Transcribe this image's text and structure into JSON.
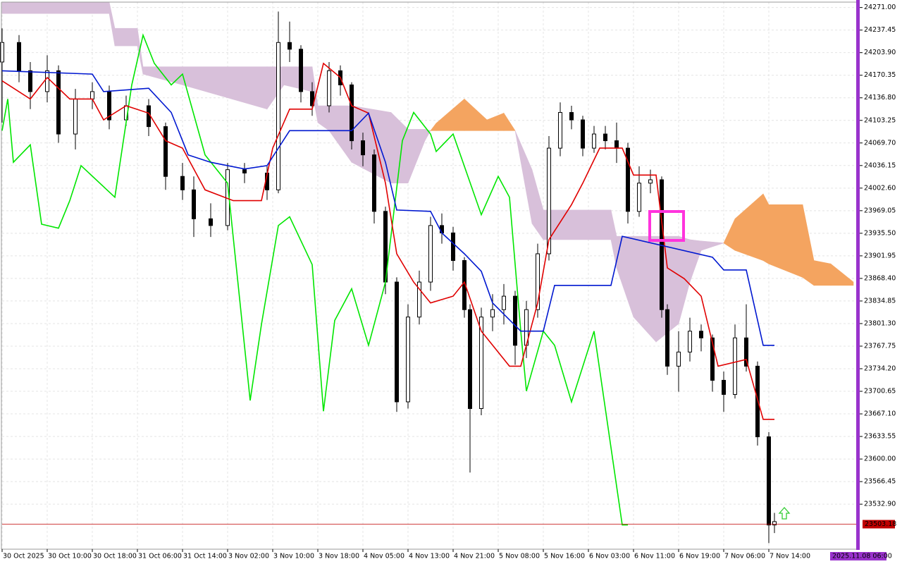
{
  "chart_data": {
    "type": "candlestick",
    "xlim": [
      0,
      152
    ],
    "ylim": [
      23466,
      24279
    ],
    "grid": true,
    "xticks": [
      {
        "value": 0,
        "label": "30 Oct 2025"
      },
      {
        "value": 8,
        "label": "30 Oct 10:00"
      },
      {
        "value": 16,
        "label": "30 Oct 18:00"
      },
      {
        "value": 24,
        "label": "31 Oct 06:00"
      },
      {
        "value": 32,
        "label": "31 Oct 14:00"
      },
      {
        "value": 40,
        "label": "3 Nov 02:00"
      },
      {
        "value": 48,
        "label": "3 Nov 10:00"
      },
      {
        "value": 56,
        "label": "3 Nov 18:00"
      },
      {
        "value": 64,
        "label": "4 Nov 05:00"
      },
      {
        "value": 72,
        "label": "4 Nov 13:00"
      },
      {
        "value": 80,
        "label": "4 Nov 21:00"
      },
      {
        "value": 88,
        "label": "5 Nov 08:00"
      },
      {
        "value": 96,
        "label": "5 Nov 16:00"
      },
      {
        "value": 104,
        "label": "6 Nov 03:00"
      },
      {
        "value": 112,
        "label": "6 Nov 11:00"
      },
      {
        "value": 120,
        "label": "6 Nov 19:00"
      },
      {
        "value": 128,
        "label": "7 Nov 06:00"
      },
      {
        "value": 136,
        "label": "7 Nov 14:00"
      }
    ],
    "yticks": [
      {
        "value": 24271,
        "label": "24271.00"
      },
      {
        "value": 24237.45,
        "label": "24237.45"
      },
      {
        "value": 24203.9,
        "label": "24203.90"
      },
      {
        "value": 24170.35,
        "label": "24170.35"
      },
      {
        "value": 24136.8,
        "label": "24136.80"
      },
      {
        "value": 24103.25,
        "label": "24103.25"
      },
      {
        "value": 24069.7,
        "label": "24069.70"
      },
      {
        "value": 24036.15,
        "label": "24036.15"
      },
      {
        "value": 24002.6,
        "label": "24002.60"
      },
      {
        "value": 23969.05,
        "label": "23969.05"
      },
      {
        "value": 23935.5,
        "label": "23935.50"
      },
      {
        "value": 23901.95,
        "label": "23901.95"
      },
      {
        "value": 23868.4,
        "label": "23868.40"
      },
      {
        "value": 23834.85,
        "label": "23834.85"
      },
      {
        "value": 23801.3,
        "label": "23801.30"
      },
      {
        "value": 23767.75,
        "label": "23767.75"
      },
      {
        "value": 23734.2,
        "label": "23734.20"
      },
      {
        "value": 23700.65,
        "label": "23700.65"
      },
      {
        "value": 23667.1,
        "label": "23667.10"
      },
      {
        "value": 23633.55,
        "label": "23633.55"
      },
      {
        "value": 23600,
        "label": "23600.00"
      },
      {
        "value": 23566.45,
        "label": "23566.45"
      },
      {
        "value": 23532.9,
        "label": "23532.90"
      }
    ],
    "candles": {
      "x": [
        0,
        3,
        5,
        8,
        10,
        13,
        16,
        19,
        22,
        26,
        29,
        32,
        34,
        37,
        40,
        43,
        47,
        49,
        51,
        53,
        55,
        58,
        60,
        62,
        64,
        66,
        68,
        70,
        72,
        74,
        76,
        78,
        80,
        82,
        83,
        85,
        87,
        89,
        91,
        93,
        95,
        97,
        99,
        101,
        103,
        105,
        107,
        109,
        111,
        113,
        115,
        117,
        118,
        120,
        122,
        124,
        126,
        128,
        130,
        132,
        134,
        136,
        137
      ],
      "open": [
        24190,
        24219,
        24177,
        24146,
        24177,
        24083,
        24135,
        24146,
        24104,
        24125,
        24094,
        24020,
        24000,
        23957,
        23947,
        24030,
        24025,
        24000,
        24219,
        24209,
        24146,
        24125,
        24177,
        24156,
        24073,
        24052,
        23968,
        23863,
        23685,
        23811,
        23863,
        23947,
        23936,
        23895,
        23822,
        23675,
        23811,
        23822,
        23842,
        23769,
        23822,
        23905,
        24062,
        24115,
        24104,
        24062,
        24083,
        24073,
        24062,
        23968,
        24010,
        24015,
        23822,
        23738,
        23759,
        23790,
        23780,
        23717,
        23696,
        23780,
        23738,
        23633,
        23502
      ],
      "high": [
        24240,
        24230,
        24190,
        24200,
        24185,
        24150,
        24160,
        24155,
        24140,
        24135,
        24100,
        24040,
        24020,
        23980,
        24040,
        24040,
        24035,
        24265,
        24250,
        24215,
        24160,
        24190,
        24185,
        24160,
        24085,
        24060,
        23975,
        23870,
        23830,
        23880,
        23960,
        23965,
        23945,
        23900,
        23830,
        23825,
        23845,
        23860,
        23850,
        23835,
        23920,
        24080,
        24130,
        24125,
        24110,
        24095,
        24095,
        24100,
        24070,
        24035,
        24030,
        24020,
        23830,
        23790,
        23810,
        23800,
        23785,
        23730,
        23800,
        23830,
        23745,
        23640,
        23520
      ],
      "low": [
        24100,
        24160,
        24120,
        24130,
        24070,
        24060,
        24120,
        24090,
        24095,
        24080,
        24000,
        23985,
        23930,
        23930,
        23940,
        24010,
        23985,
        23995,
        24190,
        24130,
        24110,
        24115,
        24140,
        24060,
        24035,
        23950,
        23845,
        23670,
        23675,
        23800,
        23850,
        23920,
        23880,
        23810,
        23580,
        23665,
        23790,
        23800,
        23740,
        23750,
        23810,
        23895,
        24050,
        24090,
        24050,
        24055,
        24060,
        24040,
        23950,
        23960,
        23995,
        23810,
        23725,
        23700,
        23745,
        23760,
        23700,
        23670,
        23690,
        23730,
        23620,
        23475,
        23490
      ],
      "close": [
        24219,
        24177,
        24146,
        24177,
        24083,
        24135,
        24146,
        24104,
        24125,
        24094,
        24020,
        24000,
        23957,
        23947,
        24030,
        24025,
        24000,
        24219,
        24209,
        24146,
        24125,
        24177,
        24156,
        24073,
        24052,
        23968,
        23863,
        23685,
        23811,
        23863,
        23947,
        23936,
        23895,
        23822,
        23675,
        23811,
        23822,
        23842,
        23769,
        23822,
        23905,
        24062,
        24115,
        24104,
        24062,
        24083,
        24073,
        24062,
        23968,
        24010,
        24015,
        23822,
        23738,
        23759,
        23790,
        23780,
        23717,
        23696,
        23780,
        23738,
        23633,
        23502,
        23507
      ]
    },
    "cloud": {
      "bull_color": "#f4a460",
      "bear_color": "#d8c0da",
      "x": [
        0,
        19,
        20,
        24,
        25,
        32,
        47,
        50,
        55,
        56,
        58,
        62,
        69,
        72,
        75,
        76,
        77,
        82,
        86,
        89,
        91,
        94,
        96,
        108,
        109,
        112,
        116,
        120,
        122,
        124,
        128,
        130,
        135,
        136,
        142,
        144,
        147,
        151
      ],
      "span_a": [
        24262,
        24262,
        24214,
        24214,
        24172,
        24156,
        24120,
        24156,
        24146,
        24100,
        24088,
        24041,
        24010,
        24010,
        24073,
        24088,
        24099,
        24135,
        24104,
        24114,
        24088,
        23950,
        23926,
        23926,
        23884,
        23811,
        23774,
        23801,
        23863,
        23910,
        23921,
        23957,
        23994,
        23978,
        23978,
        23895,
        23890,
        23863
      ],
      "span_b": [
        24279,
        24279,
        24240,
        24240,
        24183,
        24183,
        24183,
        24183,
        24183,
        24125,
        24125,
        24125,
        24115,
        24090,
        24090,
        24088,
        24088,
        24088,
        24088,
        24088,
        24088,
        24030,
        23970,
        23970,
        23931,
        23931,
        23931,
        23931,
        23926,
        23924,
        23921,
        23910,
        23895,
        23890,
        23870,
        23858,
        23858,
        23858
      ]
    },
    "series": [
      {
        "color": "#00e600",
        "x": [
          0,
          1,
          2,
          5,
          7,
          10,
          12,
          14,
          20,
          23,
          25,
          27,
          30,
          32,
          36,
          40,
          44,
          46,
          49,
          51,
          55,
          57,
          59,
          62,
          65,
          68,
          71,
          73,
          76,
          77,
          80,
          85,
          88,
          90,
          92,
          93,
          96,
          98,
          101,
          105,
          110,
          111
        ],
        "values": [
          24088,
          24135,
          24041,
          24067,
          23949,
          23943,
          23984,
          24036,
          23989,
          24156,
          24230,
          24188,
          24156,
          24172,
          24052,
          24010,
          23687,
          23800,
          23947,
          23960,
          23889,
          23671,
          23806,
          23853,
          23769,
          23863,
          24073,
          24115,
          24083,
          24057,
          24083,
          23963,
          24020,
          23989,
          23790,
          23701,
          23790,
          23769,
          23685,
          23790,
          23502,
          23502
        ]
      },
      {
        "color": "#e00000",
        "x": [
          0,
          5,
          8,
          12,
          16,
          18,
          22,
          26,
          29,
          32,
          36,
          41,
          46,
          48,
          51,
          55,
          57,
          60,
          62,
          65,
          68,
          70,
          73,
          76,
          80,
          82,
          85,
          90,
          92,
          95,
          97,
          101,
          103,
          106,
          110,
          112,
          116,
          118,
          121,
          124,
          127,
          132,
          135,
          137
        ],
        "values": [
          24162,
          24135,
          24167,
          24135,
          24135,
          24104,
          24125,
          24114,
          24073,
          24062,
          24000,
          23984,
          23984,
          24062,
          24120,
          24120,
          24188,
          24167,
          24125,
          24114,
          24010,
          23905,
          23863,
          23832,
          23842,
          23863,
          23790,
          23738,
          23738,
          23832,
          23926,
          23978,
          24010,
          24062,
          24062,
          24022,
          24022,
          23884,
          23868,
          23842,
          23738,
          23748,
          23659,
          23659
        ]
      },
      {
        "color": "#0018d0",
        "x": [
          0,
          16,
          18,
          26,
          30,
          33,
          37,
          43,
          47,
          51,
          62,
          65,
          68,
          70,
          76,
          78,
          82,
          85,
          87,
          92,
          96,
          98,
          108,
          110,
          126,
          128,
          132,
          135,
          137
        ],
        "values": [
          24177,
          24172,
          24146,
          24151,
          24115,
          24052,
          24041,
          24031,
          24036,
          24088,
          24088,
          24114,
          24041,
          23970,
          23968,
          23936,
          23905,
          23879,
          23832,
          23790,
          23790,
          23858,
          23858,
          23931,
          23900,
          23881,
          23881,
          23769,
          23769
        ]
      }
    ],
    "current_price": 23503.18,
    "current_price_color": "#c00000",
    "time_label": "2025.11.08 06:00"
  }
}
